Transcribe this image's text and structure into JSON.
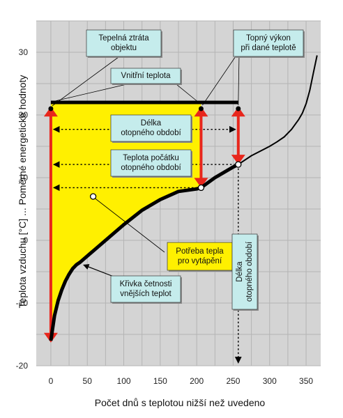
{
  "chart_data": {
    "type": "area",
    "xlabel": "Počet dnů s teplotou nižší než uvedeno",
    "ylabel": "Teplota vzduchu [°C] ... Poměrné energetické hodnoty",
    "xlim": [
      -20,
      370
    ],
    "ylim": [
      -20,
      35
    ],
    "x_ticks": [
      "0",
      "50",
      "100",
      "150",
      "200",
      "250",
      "300",
      "350"
    ],
    "y_ticks": [
      "-20",
      "-10",
      "0",
      "10",
      "20",
      "30"
    ],
    "grid": true,
    "curve": {
      "name": "Křivka četnosti vnějších teplot",
      "x": [
        0,
        5,
        10,
        15,
        20,
        25,
        30,
        35,
        40,
        45,
        50,
        60,
        80,
        100,
        125,
        150,
        175,
        200,
        206,
        225,
        250,
        257,
        275,
        300,
        310,
        320,
        330,
        340,
        345,
        350,
        355,
        360,
        365
      ],
      "y": [
        -16,
        -12,
        -9.6,
        -7.9,
        -6.5,
        -5.4,
        -4.5,
        -3.9,
        -3.5,
        -3.0,
        -2.5,
        -1.5,
        0.5,
        2.5,
        4.8,
        6.5,
        7.8,
        8.2,
        8.4,
        10,
        11.7,
        12.1,
        13.5,
        15,
        15.7,
        16.5,
        17.7,
        19.3,
        20.3,
        21.8,
        23.9,
        26.7,
        29.5
      ]
    },
    "inner_temperature": {
      "value": 22,
      "x_range": [
        0,
        257
      ]
    },
    "heating_season_length_days": 206,
    "heating_start_temperature": 12,
    "marked_points": [
      {
        "x": 0,
        "y": 21
      },
      {
        "x": 206,
        "y": 21
      },
      {
        "x": 257,
        "y": 21
      },
      {
        "x": 206,
        "y": 8.4
      },
      {
        "x": 257,
        "y": 12.1
      },
      {
        "x": 58,
        "y": 7
      }
    ],
    "callouts": [
      {
        "id": "tepelna",
        "lines": [
          "Tepelná ztráta",
          "objektu"
        ],
        "style": "cyan"
      },
      {
        "id": "topny",
        "lines": [
          "Topný výkon",
          "při dané teplotě"
        ],
        "style": "cyan"
      },
      {
        "id": "vnitrni",
        "lines": [
          "Vnitřní teplota"
        ],
        "style": "cyan"
      },
      {
        "id": "delka",
        "lines": [
          "Délka",
          "otopného období"
        ],
        "style": "cyan"
      },
      {
        "id": "teplota",
        "lines": [
          "Teplota počátku",
          "otopného období"
        ],
        "style": "cyan"
      },
      {
        "id": "potreba",
        "lines": [
          "Potřeba tepla",
          "pro vytápění"
        ],
        "style": "yellow"
      },
      {
        "id": "krivka",
        "lines": [
          "Křivka četnosti",
          "vnějších teplot"
        ],
        "style": "cyan"
      },
      {
        "id": "delka_vert",
        "lines": [
          "Délka",
          "otopného období"
        ],
        "style": "cyan_vertical"
      }
    ],
    "colors": {
      "plot_bg": "#d4d4d4",
      "grid": "#b4b4b4",
      "area": "#fff000",
      "arrow": "#e8261c",
      "curve": "#000000",
      "callout_cyan": "#c5ecec",
      "callout_yellow": "#fff000"
    }
  }
}
